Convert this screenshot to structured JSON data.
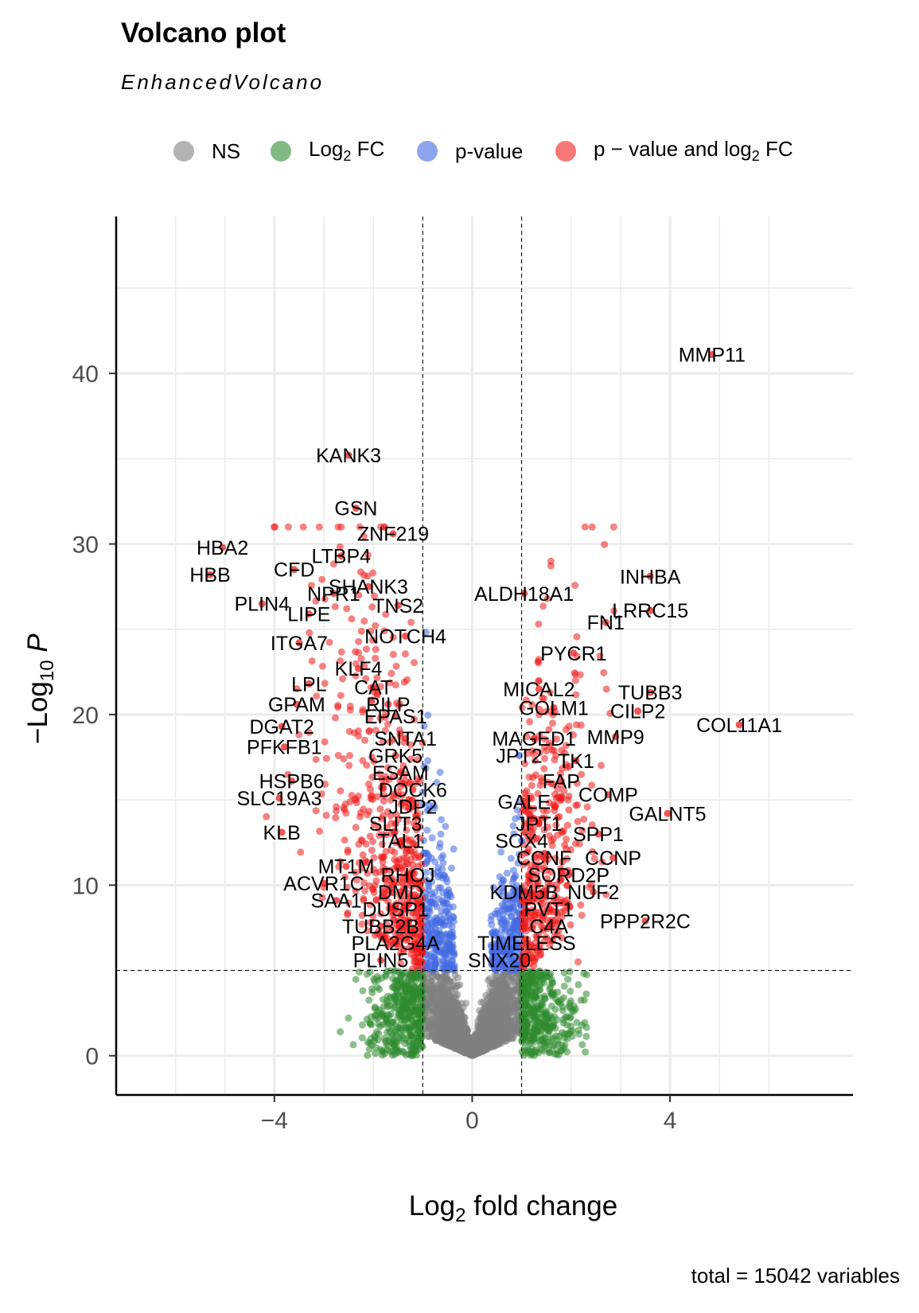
{
  "chart_data": {
    "type": "scatter",
    "title": "Volcano plot",
    "subtitle": "EnhancedVolcano",
    "xlabel_prefix": "Log",
    "xlabel_sub": "2",
    "xlabel_suffix": " fold change",
    "ylabel_prefix": "−Log",
    "ylabel_sub": "10",
    "ylabel_var": " P",
    "caption": "total = 15042 variables",
    "xlim": [
      -7.2,
      7.7
    ],
    "ylim": [
      -2.3,
      49.2
    ],
    "xticks": [
      -4,
      0,
      4
    ],
    "yticks": [
      0,
      10,
      20,
      30,
      40
    ],
    "log2fc_cutoff": 1,
    "p_cutoff_neglog10": 5,
    "grid": true,
    "legend_position": "top",
    "legend": [
      {
        "key": "ns",
        "label": "NS",
        "color": "#808080"
      },
      {
        "key": "fc",
        "label_prefix": "Log",
        "label_sub": "2",
        "label_suffix": " FC",
        "color": "#2e8b2e"
      },
      {
        "key": "p",
        "label": "p-value",
        "color": "#4169e1"
      },
      {
        "key": "both",
        "label_prefix": "p − value and log",
        "label_sub": "2",
        "label_suffix": " FC",
        "color": "#ee1c1c"
      }
    ],
    "labeled_genes": [
      {
        "name": "MMP11",
        "x": 4.85,
        "y": 41.1
      },
      {
        "name": "KANK3",
        "x": -2.5,
        "y": 35.2
      },
      {
        "name": "GSN",
        "x": -2.35,
        "y": 32.1
      },
      {
        "name": "ZNF219",
        "x": -1.6,
        "y": 30.6
      },
      {
        "name": "LTBP4",
        "x": -2.65,
        "y": 29.3
      },
      {
        "name": "HBA2",
        "x": -5.05,
        "y": 29.8
      },
      {
        "name": "HBB",
        "x": -5.3,
        "y": 28.2
      },
      {
        "name": "CFD",
        "x": -3.6,
        "y": 28.5
      },
      {
        "name": "SHANK3",
        "x": -2.1,
        "y": 27.5
      },
      {
        "name": "INHBA",
        "x": 3.6,
        "y": 28.1
      },
      {
        "name": "NPR1",
        "x": -2.8,
        "y": 27.1
      },
      {
        "name": "PLIN4",
        "x": -4.25,
        "y": 26.5
      },
      {
        "name": "ALDH18A1",
        "x": 1.05,
        "y": 27.1
      },
      {
        "name": "TNS2",
        "x": -1.5,
        "y": 26.4
      },
      {
        "name": "LRRC15",
        "x": 3.6,
        "y": 26.1
      },
      {
        "name": "LIPE",
        "x": -3.3,
        "y": 25.9
      },
      {
        "name": "FN1",
        "x": 2.7,
        "y": 25.4
      },
      {
        "name": "NOTCH4",
        "x": -1.35,
        "y": 24.6
      },
      {
        "name": "ITGA7",
        "x": -3.5,
        "y": 24.2
      },
      {
        "name": "PYCR1",
        "x": 2.05,
        "y": 23.6
      },
      {
        "name": "KLF4",
        "x": -2.3,
        "y": 22.7
      },
      {
        "name": "LPL",
        "x": -3.3,
        "y": 21.8
      },
      {
        "name": "CAT",
        "x": -2.0,
        "y": 21.6
      },
      {
        "name": "MICAL2",
        "x": 1.35,
        "y": 21.5
      },
      {
        "name": "TUBB3",
        "x": 3.6,
        "y": 21.3
      },
      {
        "name": "GPAM",
        "x": -3.55,
        "y": 20.6
      },
      {
        "name": "RILP",
        "x": -1.7,
        "y": 20.6
      },
      {
        "name": "GOLM1",
        "x": 1.65,
        "y": 20.4
      },
      {
        "name": "CILP2",
        "x": 3.35,
        "y": 20.2
      },
      {
        "name": "EPAS1",
        "x": -1.55,
        "y": 19.9
      },
      {
        "name": "DGAT2",
        "x": -3.85,
        "y": 19.3
      },
      {
        "name": "COL11A1",
        "x": 5.4,
        "y": 19.4
      },
      {
        "name": "SNTA1",
        "x": -1.35,
        "y": 18.6
      },
      {
        "name": "MAGED1",
        "x": 1.25,
        "y": 18.6
      },
      {
        "name": "MMP9",
        "x": 2.9,
        "y": 18.7
      },
      {
        "name": "PFKFB1",
        "x": -3.8,
        "y": 18.1
      },
      {
        "name": "GRK5",
        "x": -1.55,
        "y": 17.6
      },
      {
        "name": "JPT2",
        "x": 0.95,
        "y": 17.6
      },
      {
        "name": "TK1",
        "x": 2.1,
        "y": 17.3
      },
      {
        "name": "ESAM",
        "x": -1.45,
        "y": 16.6
      },
      {
        "name": "HSPB6",
        "x": -3.65,
        "y": 16.1
      },
      {
        "name": "FAP",
        "x": 1.8,
        "y": 16.1
      },
      {
        "name": "DOCK6",
        "x": -1.2,
        "y": 15.6
      },
      {
        "name": "COMP",
        "x": 2.75,
        "y": 15.3
      },
      {
        "name": "SLC19A3",
        "x": -3.9,
        "y": 15.1
      },
      {
        "name": "GALE",
        "x": 1.05,
        "y": 14.9
      },
      {
        "name": "JDP2",
        "x": -1.2,
        "y": 14.6
      },
      {
        "name": "GALNT5",
        "x": 3.95,
        "y": 14.2
      },
      {
        "name": "JPT1",
        "x": 1.35,
        "y": 13.6
      },
      {
        "name": "SLIT3",
        "x": -1.55,
        "y": 13.6
      },
      {
        "name": "KLB",
        "x": -3.85,
        "y": 13.1
      },
      {
        "name": "SPP1",
        "x": 2.55,
        "y": 13.0
      },
      {
        "name": "SOX4",
        "x": 1.0,
        "y": 12.6
      },
      {
        "name": "TAL1",
        "x": -1.45,
        "y": 12.6
      },
      {
        "name": "CCNF",
        "x": 1.45,
        "y": 11.6
      },
      {
        "name": "CCNP",
        "x": 2.85,
        "y": 11.6
      },
      {
        "name": "MT1M",
        "x": -2.55,
        "y": 11.1
      },
      {
        "name": "SORD2P",
        "x": 1.95,
        "y": 10.6
      },
      {
        "name": "RHOJ",
        "x": -1.3,
        "y": 10.6
      },
      {
        "name": "ACVR1C",
        "x": -3.0,
        "y": 10.1
      },
      {
        "name": "DMD",
        "x": -1.45,
        "y": 9.6
      },
      {
        "name": "KDM5B",
        "x": 1.05,
        "y": 9.6
      },
      {
        "name": "NUF2",
        "x": 2.45,
        "y": 9.6
      },
      {
        "name": "SAA1",
        "x": -2.75,
        "y": 9.1
      },
      {
        "name": "PVT1",
        "x": 1.55,
        "y": 8.6
      },
      {
        "name": "DUSP1",
        "x": -1.55,
        "y": 8.6
      },
      {
        "name": "PPP2R2C",
        "x": 3.5,
        "y": 7.9
      },
      {
        "name": "TUBB2B",
        "x": -1.85,
        "y": 7.6
      },
      {
        "name": "C4A",
        "x": 1.55,
        "y": 7.6
      },
      {
        "name": "PLA2G4A",
        "x": -1.55,
        "y": 6.6
      },
      {
        "name": "TIMELESS",
        "x": 1.1,
        "y": 6.6
      },
      {
        "name": "PLIN5",
        "x": -1.85,
        "y": 5.6
      },
      {
        "name": "SNX20",
        "x": 0.55,
        "y": 5.6
      }
    ]
  }
}
